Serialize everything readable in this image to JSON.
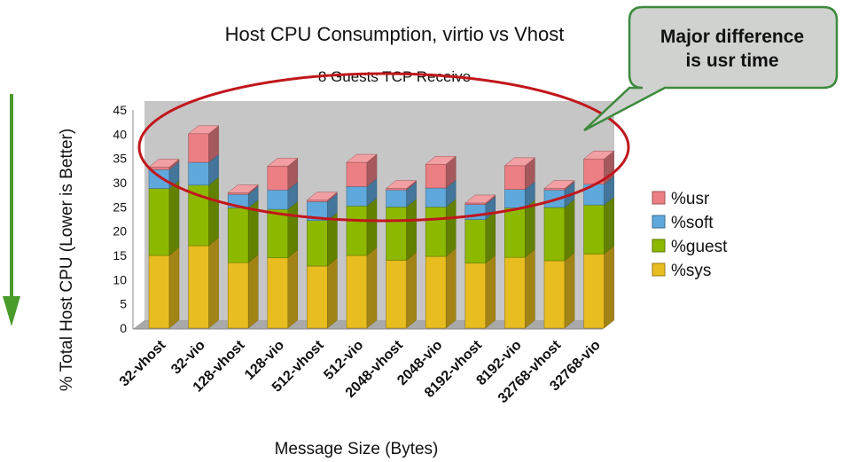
{
  "chart_data": {
    "type": "bar",
    "stacked": true,
    "title": "Host CPU Consumption, virtio vs Vhost",
    "subtitle": "8 Guests TCP Receive",
    "xlabel": "Message Size (Bytes)",
    "ylabel": "% Total Host CPU (Lower is Better)",
    "ylim": [
      0,
      45
    ],
    "yticks": [
      0,
      5,
      10,
      15,
      20,
      25,
      30,
      35,
      40,
      45
    ],
    "grid": false,
    "legend_position": "right",
    "categories": [
      "32-vhost",
      "32-vio",
      "128-vhost",
      "128-vio",
      "512-vhost",
      "512-vio",
      "2048-vhost",
      "2048-vio",
      "8192-vhost",
      "8192-vio",
      "32768-vhost",
      "32768-vio"
    ],
    "series": [
      {
        "name": "%sys",
        "color": "#e8bd1f",
        "values": [
          15.0,
          17.0,
          13.5,
          14.5,
          12.8,
          15.0,
          14.0,
          14.8,
          13.4,
          14.6,
          13.9,
          15.3
        ]
      },
      {
        "name": "%guest",
        "color": "#8db800",
        "values": [
          13.8,
          12.5,
          11.3,
          10.0,
          9.4,
          10.2,
          11.0,
          10.2,
          9.0,
          10.2,
          11.0,
          10.1
        ]
      },
      {
        "name": "%soft",
        "color": "#5fa8dc",
        "values": [
          3.9,
          4.7,
          2.8,
          4.0,
          3.9,
          4.0,
          3.5,
          3.9,
          3.1,
          3.8,
          3.6,
          4.3
        ]
      },
      {
        "name": "%usr",
        "color": "#ec7f84",
        "values": [
          0.5,
          5.9,
          0.3,
          4.9,
          0.3,
          5.0,
          0.3,
          4.9,
          0.3,
          4.9,
          0.3,
          5.2
        ]
      }
    ],
    "legend_order": [
      "%usr",
      "%soft",
      "%guest",
      "%sys"
    ]
  },
  "callout": {
    "line1": "Major difference",
    "line2": "is usr time",
    "fill": "#cfd2cf",
    "border": "#3d8a3d",
    "ellipse_color": "#c0171c"
  },
  "arrow": {
    "color": "#4a9a2c"
  },
  "plot": {
    "background": "#c6c6c6",
    "floor": "#a9a9a9"
  }
}
